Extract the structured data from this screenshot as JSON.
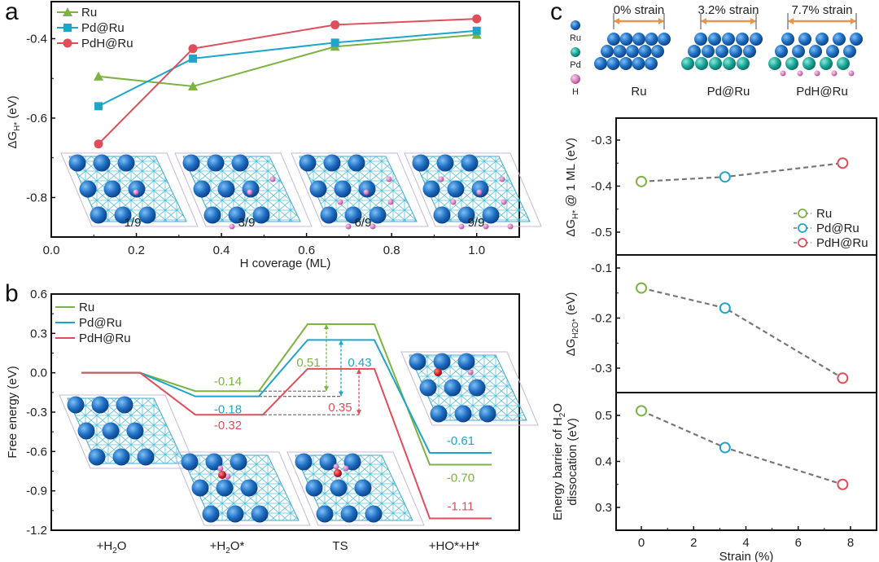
{
  "panels": {
    "a": "a",
    "b": "b",
    "c": "c"
  },
  "colors": {
    "Ru": "#7cb342",
    "Pd@Ru": "#1ea5c9",
    "PdH@Ru": "#e04e5c",
    "dash": "#777777",
    "strain_arrow": "#e8944a",
    "Ru_atom": "#1f6fc4",
    "Pd_atom": "#1aa89a",
    "H_atom": "#d77fc0",
    "O_atom": "#d0202a"
  },
  "chart_data": [
    {
      "id": "a",
      "type": "line",
      "title": "",
      "xlabel": "H coverage (ML)",
      "ylabel": "ΔG_H* (eV)",
      "xlim": [
        0.0,
        1.1
      ],
      "ylim": [
        -0.9,
        -0.33
      ],
      "xticks": [
        0.0,
        0.2,
        0.4,
        0.6,
        0.8,
        1.0
      ],
      "xtick_labels": [
        "0.0",
        "0.2",
        "0.4",
        "0.6",
        "0.8",
        "1.0"
      ],
      "yticks": [
        -0.4,
        -0.6,
        -0.8
      ],
      "ytick_labels": [
        "-0.4",
        "-0.6",
        "-0.8"
      ],
      "legend_position": "top-left",
      "x": [
        0.111,
        0.333,
        0.667,
        1.0
      ],
      "series": [
        {
          "name": "Ru",
          "marker": "triangle",
          "values": [
            -0.495,
            -0.52,
            -0.42,
            -0.39
          ]
        },
        {
          "name": "Pd@Ru",
          "marker": "square",
          "values": [
            -0.57,
            -0.45,
            -0.41,
            -0.38
          ]
        },
        {
          "name": "PdH@Ru",
          "marker": "circle",
          "values": [
            -0.665,
            -0.425,
            -0.365,
            -0.35
          ]
        }
      ],
      "inset_labels": [
        "1/9",
        "3/9",
        "6/9",
        "9/9"
      ]
    },
    {
      "id": "b",
      "type": "line",
      "title": "",
      "xlabel": "",
      "ylabel": "Free energy (eV)",
      "ylim": [
        -1.2,
        0.6
      ],
      "yticks": [
        0.6,
        0.3,
        0.0,
        -0.3,
        -0.6,
        -0.9,
        -1.2
      ],
      "ytick_labels": [
        "0.6",
        "0.3",
        "0.0",
        "-0.3",
        "-0.6",
        "-0.9",
        "-1.2"
      ],
      "categories": [
        "+H2O",
        "+H2O*",
        "TS",
        "+HO*+H*"
      ],
      "category_labels": [
        [
          "+H",
          "2",
          "O",
          ""
        ],
        [
          "+H",
          "2",
          "O*",
          ""
        ],
        [
          "TS",
          "",
          "",
          ""
        ],
        [
          "+HO*+H*",
          "",
          "",
          ""
        ]
      ],
      "legend_position": "top-left",
      "series": [
        {
          "name": "Ru",
          "values": [
            0.0,
            -0.14,
            0.37,
            -0.7
          ],
          "labels": [
            "",
            "-0.14",
            "",
            "-0.70"
          ],
          "barrier": 0.51,
          "barrier_label": "0.51"
        },
        {
          "name": "Pd@Ru",
          "values": [
            0.0,
            -0.18,
            0.25,
            -0.61
          ],
          "labels": [
            "",
            "-0.18",
            "",
            "-0.61"
          ],
          "barrier": 0.43,
          "barrier_label": "0.43"
        },
        {
          "name": "PdH@Ru",
          "values": [
            0.0,
            -0.32,
            0.03,
            -1.11
          ],
          "labels": [
            "",
            "-0.32",
            "",
            "-1.11"
          ],
          "barrier": 0.35,
          "barrier_label": "0.35"
        }
      ]
    },
    {
      "id": "c-top",
      "type": "scatter",
      "ylabel": "ΔG_H* @ 1 ML (eV)",
      "xlim": [
        -1,
        9
      ],
      "ylim": [
        -0.55,
        -0.25
      ],
      "yticks": [
        -0.3,
        -0.4,
        -0.5
      ],
      "ytick_labels": [
        "-0.3",
        "-0.4",
        "-0.5"
      ],
      "x": [
        0,
        3.2,
        7.7
      ],
      "names": [
        "Ru",
        "Pd@Ru",
        "PdH@Ru"
      ],
      "values": [
        -0.39,
        -0.38,
        -0.35
      ],
      "legend_position": "bottom-right"
    },
    {
      "id": "c-mid",
      "type": "scatter",
      "ylabel": "ΔG_H2O* (eV)",
      "xlim": [
        -1,
        9
      ],
      "ylim": [
        -0.35,
        -0.07
      ],
      "yticks": [
        -0.1,
        -0.2,
        -0.3
      ],
      "ytick_labels": [
        "-0.1",
        "-0.2",
        "-0.3"
      ],
      "x": [
        0,
        3.2,
        7.7
      ],
      "names": [
        "Ru",
        "Pd@Ru",
        "PdH@Ru"
      ],
      "values": [
        -0.14,
        -0.18,
        -0.32
      ]
    },
    {
      "id": "c-bot",
      "type": "scatter",
      "ylabel": "Energy barrier of H2O dissocation (eV)",
      "xlabel": "Strain (%)",
      "xlim": [
        -1,
        9
      ],
      "ylim": [
        0.25,
        0.55
      ],
      "xticks": [
        0,
        2,
        4,
        6,
        8
      ],
      "xtick_labels": [
        "0",
        "2",
        "4",
        "6",
        "8"
      ],
      "yticks": [
        0.5,
        0.4,
        0.3
      ],
      "ytick_labels": [
        "0.5",
        "0.4",
        "0.3"
      ],
      "x": [
        0,
        3.2,
        7.7
      ],
      "names": [
        "Ru",
        "Pd@Ru",
        "PdH@Ru"
      ],
      "values": [
        0.51,
        0.43,
        0.35
      ]
    }
  ],
  "panel_c_header": {
    "legend_atoms": [
      "Ru",
      "Pd",
      "H"
    ],
    "models": [
      {
        "name": "Ru",
        "strain_label": "0% strain"
      },
      {
        "name": "Pd@Ru",
        "strain_label": "3.2% strain"
      },
      {
        "name": "PdH@Ru",
        "strain_label": "7.7% strain"
      }
    ]
  },
  "axis_text": {
    "a_ylabel_main": "ΔG",
    "a_ylabel_sub": "H*",
    "a_ylabel_tail": " (eV)",
    "b_ylabel": "Free energy (eV)",
    "c1_ylabel_main": "ΔG",
    "c1_ylabel_sub": "H*",
    "c1_ylabel_tail": " @ 1 ML (eV)",
    "c2_ylabel_main": "ΔG",
    "c2_ylabel_sub": "H2O*",
    "c2_ylabel_tail": " (eV)",
    "c3_ylabel_line1": "Energy barrier of H",
    "c3_ylabel_sub": "2",
    "c3_ylabel_line1_tail": "O",
    "c3_ylabel_line2": "dissocation (eV)"
  }
}
